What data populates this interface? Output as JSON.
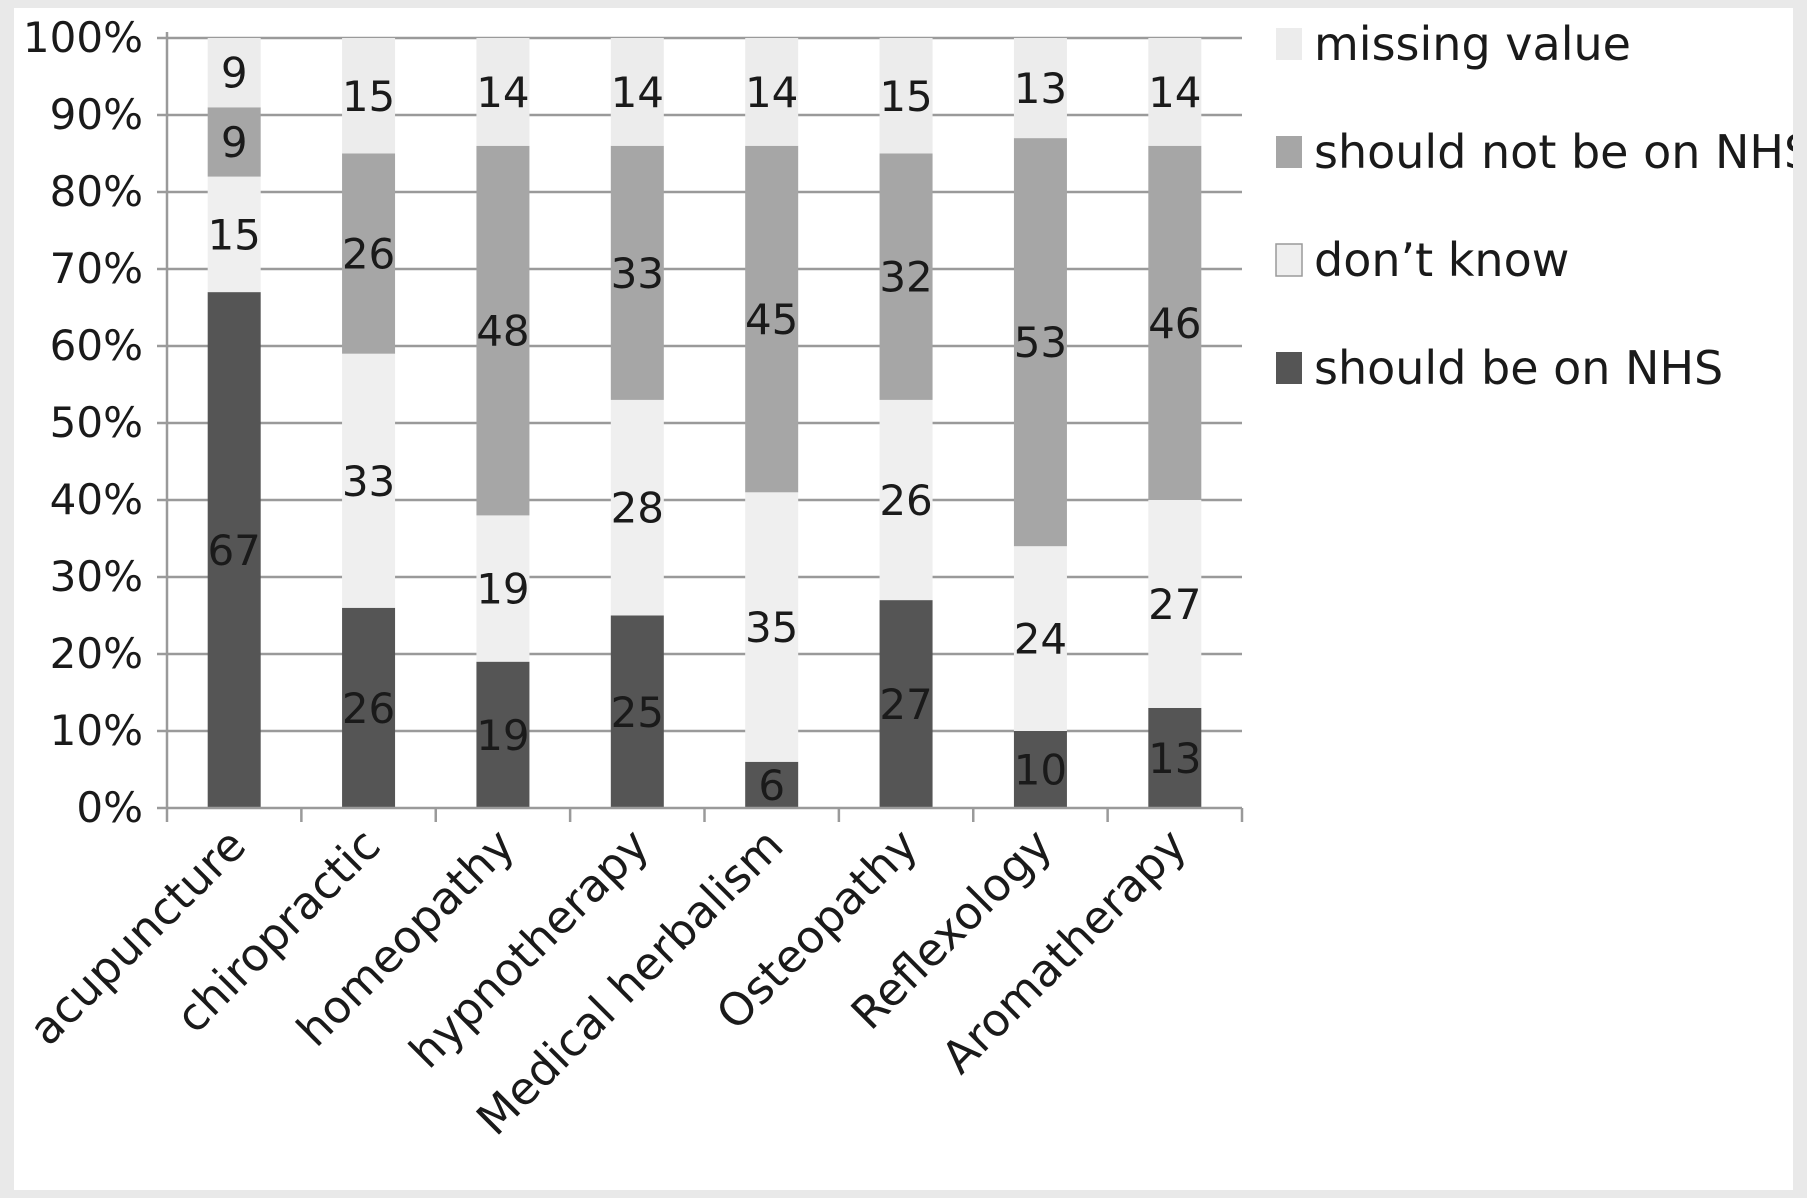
{
  "chart_data": {
    "type": "bar",
    "stacked": true,
    "percent": true,
    "categories": [
      "acupuncture",
      "chiropractic",
      "homeopathy",
      "hypnotherapy",
      "Medical herbalism",
      "Osteopathy",
      "Reflexology",
      "Aromatherapy"
    ],
    "series": [
      {
        "name": "should be on NHS",
        "color": "#555555",
        "values": [
          67,
          26,
          19,
          25,
          6,
          27,
          10,
          13
        ]
      },
      {
        "name": "don’t know",
        "color": "#efefef",
        "values": [
          15,
          33,
          19,
          28,
          35,
          26,
          24,
          27
        ]
      },
      {
        "name": "should not be on NHS",
        "color": "#a6a6a6",
        "values": [
          9,
          26,
          48,
          33,
          45,
          32,
          53,
          46
        ]
      },
      {
        "name": "missing value",
        "color": "#ececec",
        "values": [
          9,
          15,
          14,
          14,
          14,
          15,
          13,
          14
        ]
      }
    ],
    "yticks": [
      "0%",
      "10%",
      "20%",
      "30%",
      "40%",
      "50%",
      "60%",
      "70%",
      "80%",
      "90%",
      "100%"
    ],
    "ylim": [
      0,
      100
    ],
    "grid": true,
    "legend_position": "right",
    "title": "",
    "xlabel": "",
    "ylabel": ""
  }
}
